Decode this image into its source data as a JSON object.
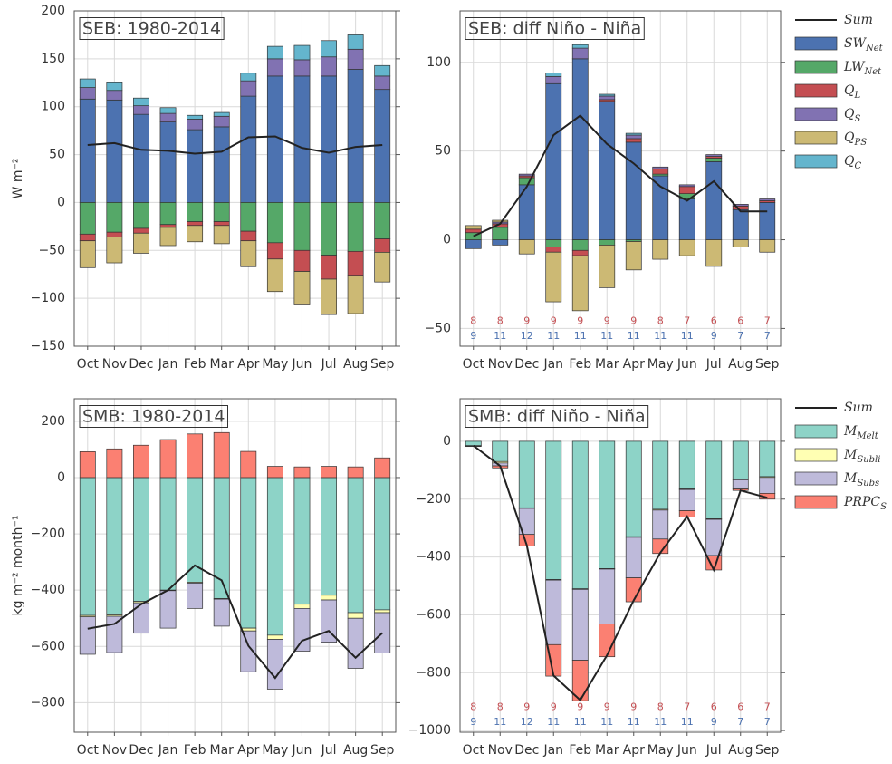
{
  "chart_data": [
    {
      "type": "stacked_bar",
      "title": "SEB: 1980-2014",
      "ylabel": "W m⁻²",
      "categories": [
        "Oct",
        "Nov",
        "Dec",
        "Jan",
        "Feb",
        "Mar",
        "Apr",
        "May",
        "Jun",
        "Jul",
        "Aug",
        "Sep"
      ],
      "ylim": [
        -150,
        200
      ],
      "yticks": [
        {
          "value": -150,
          "label": "−150"
        },
        {
          "value": -100,
          "label": "−100"
        },
        {
          "value": -50,
          "label": "−50"
        },
        0,
        50,
        100,
        150,
        200
      ],
      "grid": true,
      "series": [
        {
          "name": "SW_Net",
          "color": "#4c72b0",
          "values": [
            108,
            107,
            92,
            84,
            76,
            79,
            111,
            132,
            132,
            132,
            139,
            118
          ]
        },
        {
          "name": "LW_Net",
          "color": "#55a868",
          "values": [
            -33,
            -31,
            -27,
            -23,
            -20,
            -20,
            -30,
            -42,
            -50,
            -55,
            -51,
            -38
          ]
        },
        {
          "name": "Q_L",
          "color": "#c44e52",
          "values": [
            -7,
            -5,
            -5,
            -3,
            -4,
            -4,
            -10,
            -17,
            -22,
            -25,
            -25,
            -14
          ]
        },
        {
          "name": "Q_S",
          "color": "#8172b2",
          "values": [
            12,
            10,
            9,
            9,
            11,
            11,
            16,
            18,
            17,
            20,
            21,
            14
          ]
        },
        {
          "name": "Q_PS",
          "color": "#ccb974",
          "values": [
            -28,
            -27,
            -21,
            -19,
            -17,
            -19,
            -27,
            -34,
            -34,
            -37,
            -40,
            -31
          ]
        },
        {
          "name": "Q_C",
          "color": "#64b5cd",
          "values": [
            9,
            8,
            8,
            6,
            4,
            4,
            8,
            13,
            15,
            17,
            15,
            11
          ]
        }
      ],
      "sum": {
        "name": "Sum",
        "color": "#222222",
        "values": [
          60,
          62,
          55,
          54,
          51,
          53,
          68,
          69,
          57,
          52,
          58,
          60
        ]
      }
    },
    {
      "type": "stacked_bar",
      "title": "SEB: diff Niño - Niña",
      "categories": [
        "Oct",
        "Nov",
        "Dec",
        "Jan",
        "Feb",
        "Mar",
        "Apr",
        "May",
        "Jun",
        "Jul",
        "Aug",
        "Sep"
      ],
      "ylim": [
        -60,
        129
      ],
      "yticks": [
        {
          "value": -50,
          "label": "−50"
        },
        0,
        50,
        100
      ],
      "grid": true,
      "legend": "outside right",
      "series": [
        {
          "name": "SW_Net",
          "color": "#4c72b0",
          "values": [
            -5,
            -3,
            31,
            88,
            102,
            78,
            55,
            36,
            23,
            44,
            17,
            21
          ]
        },
        {
          "name": "LW_Net",
          "color": "#55a868",
          "values": [
            4,
            7,
            4,
            -4,
            -6,
            -3,
            -1,
            1,
            3,
            2,
            0,
            0
          ]
        },
        {
          "name": "Q_L",
          "color": "#c44e52",
          "values": [
            2,
            2,
            1,
            -3,
            -3,
            1,
            2,
            3,
            4,
            1,
            2,
            1
          ]
        },
        {
          "name": "Q_S",
          "color": "#8172b2",
          "values": [
            0,
            1,
            1,
            4,
            6,
            2,
            2,
            1,
            1,
            1,
            1,
            1
          ]
        },
        {
          "name": "Q_PS",
          "color": "#ccb974",
          "values": [
            2,
            1,
            -8,
            -28,
            -31,
            -24,
            -16,
            -11,
            -9,
            -15,
            -4,
            -7
          ]
        },
        {
          "name": "Q_C",
          "color": "#64b5cd",
          "values": [
            0,
            0,
            0,
            2,
            2,
            1,
            1,
            0,
            0,
            0,
            0,
            0
          ]
        }
      ],
      "sum": {
        "name": "Sum",
        "color": "#222222",
        "values": [
          2,
          9,
          30,
          59,
          70,
          54,
          43,
          30,
          22,
          33,
          16,
          16
        ]
      },
      "counts": [
        {
          "color": "#c44e52",
          "values": [
            8,
            8,
            9,
            9,
            9,
            9,
            9,
            8,
            7,
            6,
            6,
            7
          ]
        },
        {
          "color": "#4c72b0",
          "values": [
            9,
            11,
            12,
            11,
            11,
            11,
            11,
            11,
            11,
            9,
            7,
            7
          ]
        }
      ]
    },
    {
      "type": "stacked_bar",
      "title": "SMB: 1980-2014",
      "ylabel": "kg m⁻² month⁻¹",
      "categories": [
        "Oct",
        "Nov",
        "Dec",
        "Jan",
        "Feb",
        "Mar",
        "Apr",
        "May",
        "Jun",
        "Jul",
        "Aug",
        "Sep"
      ],
      "ylim": [
        -905,
        280
      ],
      "yticks": [
        {
          "value": -800,
          "label": "−800"
        },
        {
          "value": -600,
          "label": "−600"
        },
        {
          "value": -400,
          "label": "−400"
        },
        {
          "value": -200,
          "label": "−200"
        },
        0,
        200
      ],
      "grid": true,
      "series": [
        {
          "name": "M_Melt",
          "color": "#8dd3c7",
          "values": [
            -490,
            -488,
            -440,
            -400,
            -372,
            -430,
            -535,
            -560,
            -450,
            -418,
            -480,
            -470
          ]
        },
        {
          "name": "M_Subli",
          "color": "#ffffb3",
          "values": [
            -5,
            -5,
            -5,
            -2,
            -3,
            -2,
            -10,
            -15,
            -15,
            -17,
            -20,
            -10
          ]
        },
        {
          "name": "M_Subs",
          "color": "#bebada",
          "values": [
            -133,
            -129,
            -108,
            -133,
            -90,
            -96,
            -145,
            -177,
            -152,
            -150,
            -178,
            -143
          ]
        },
        {
          "name": "PRPC_S",
          "color": "#fb8072",
          "values": [
            92,
            102,
            115,
            135,
            155,
            160,
            93,
            40,
            38,
            40,
            38,
            70
          ]
        }
      ],
      "sum": {
        "name": "Sum",
        "color": "#222222",
        "values": [
          -537,
          -520,
          -450,
          -400,
          -312,
          -365,
          -598,
          -712,
          -580,
          -545,
          -640,
          -552
        ]
      }
    },
    {
      "type": "stacked_bar",
      "title": "SMB: diff Niño - Niña",
      "categories": [
        "Oct",
        "Nov",
        "Dec",
        "Jan",
        "Feb",
        "Mar",
        "Apr",
        "May",
        "Jun",
        "Jul",
        "Aug",
        "Sep"
      ],
      "ylim": [
        -1006,
        147
      ],
      "yticks": [
        {
          "value": -1000,
          "label": "−1000"
        },
        {
          "value": -800,
          "label": "−800"
        },
        {
          "value": -600,
          "label": "−600"
        },
        {
          "value": -400,
          "label": "−400"
        },
        {
          "value": -200,
          "label": "−200"
        },
        0
      ],
      "grid": true,
      "legend": "outside right",
      "series": [
        {
          "name": "M_Melt",
          "color": "#8dd3c7",
          "values": [
            -15,
            -70,
            -230,
            -478,
            -510,
            -440,
            -330,
            -235,
            -165,
            -268,
            -130,
            -122
          ]
        },
        {
          "name": "M_Subli",
          "color": "#ffffb3",
          "values": [
            -1,
            -5,
            -2,
            -2,
            -2,
            -2,
            -2,
            -3,
            -2,
            -2,
            -3,
            -3
          ]
        },
        {
          "name": "M_Subs",
          "color": "#bebada",
          "values": [
            -2,
            -10,
            -90,
            -223,
            -245,
            -190,
            -140,
            -100,
            -73,
            -125,
            -32,
            -55
          ]
        },
        {
          "name": "PRPC_S",
          "color": "#fb8072",
          "values": [
            0,
            -7,
            -40,
            -109,
            -140,
            -113,
            -83,
            -50,
            -22,
            -50,
            -5,
            -20
          ]
        }
      ],
      "sum": {
        "name": "Sum",
        "color": "#222222",
        "values": [
          -15,
          -85,
          -360,
          -810,
          -895,
          -740,
          -550,
          -385,
          -260,
          -445,
          -170,
          -195
        ]
      },
      "counts": [
        {
          "color": "#c44e52",
          "values": [
            8,
            8,
            9,
            9,
            9,
            9,
            9,
            8,
            7,
            6,
            6,
            7
          ]
        },
        {
          "color": "#4c72b0",
          "values": [
            9,
            11,
            12,
            11,
            11,
            11,
            11,
            11,
            11,
            9,
            7,
            7
          ]
        }
      ]
    }
  ]
}
